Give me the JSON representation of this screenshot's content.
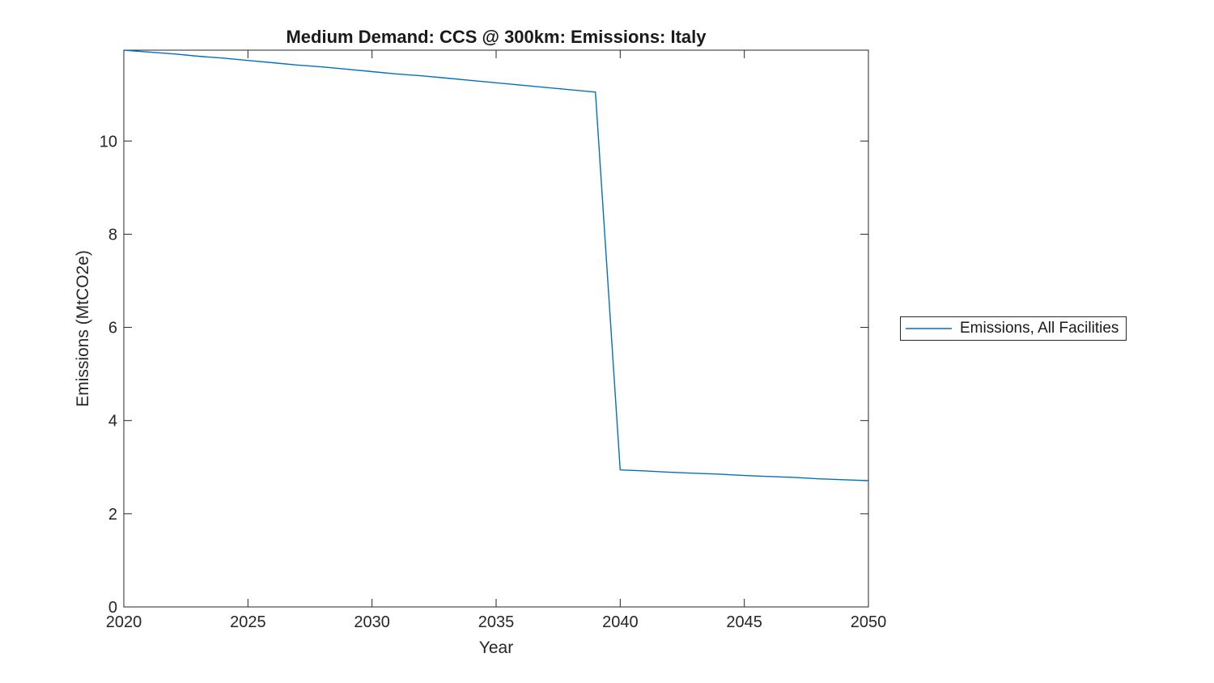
{
  "colors": {
    "line": "#0072BD",
    "axis": "#262626",
    "tick_label": "#262626",
    "background": "#ffffff"
  },
  "chart_data": {
    "type": "line",
    "title": "Medium Demand: CCS @ 300km: Emissions: Italy",
    "xlabel": "Year",
    "ylabel": "Emissions (MtCO2e)",
    "xlim": [
      2020,
      2050
    ],
    "ylim": [
      0,
      11.95
    ],
    "x_ticks": [
      2020,
      2025,
      2030,
      2035,
      2040,
      2045,
      2050
    ],
    "y_ticks": [
      0,
      2,
      4,
      6,
      8,
      10
    ],
    "grid": false,
    "box": true,
    "legend_position": "right-outside",
    "x": [
      2020,
      2021,
      2022,
      2023,
      2024,
      2025,
      2026,
      2027,
      2028,
      2029,
      2030,
      2031,
      2032,
      2033,
      2034,
      2035,
      2036,
      2037,
      2038,
      2039,
      2040,
      2041,
      2042,
      2043,
      2044,
      2045,
      2046,
      2047,
      2048,
      2049,
      2050
    ],
    "series": [
      {
        "name": "Emissions, All Facilities",
        "color": "#0072BD",
        "values": [
          11.95,
          11.91,
          11.87,
          11.82,
          11.78,
          11.73,
          11.68,
          11.63,
          11.59,
          11.54,
          11.49,
          11.44,
          11.4,
          11.35,
          11.3,
          11.25,
          11.2,
          11.15,
          11.1,
          11.05,
          2.94,
          2.92,
          2.89,
          2.87,
          2.85,
          2.82,
          2.8,
          2.78,
          2.75,
          2.73,
          2.71
        ]
      }
    ]
  }
}
